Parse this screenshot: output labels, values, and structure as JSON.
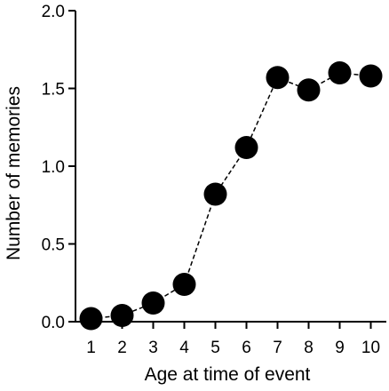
{
  "chart_data": {
    "type": "line",
    "title": "",
    "xlabel": "Age at time of event",
    "ylabel": "Number of memories",
    "x": [
      1,
      2,
      3,
      4,
      5,
      6,
      7,
      8,
      9,
      10
    ],
    "series": [
      {
        "values": [
          0.02,
          0.04,
          0.12,
          0.24,
          0.82,
          1.12,
          1.57,
          1.49,
          1.6,
          1.58
        ]
      }
    ],
    "xlim": [
      0.5,
      10.5
    ],
    "ylim": [
      0,
      2.0
    ],
    "x_ticks": [
      "1",
      "2",
      "3",
      "4",
      "5",
      "6",
      "7",
      "8",
      "9",
      "10"
    ],
    "y_ticks": [
      "0.0",
      "0.5",
      "1.0",
      "1.5",
      "2.0"
    ],
    "line_style": "dashed",
    "marker": "filled-circle",
    "colors": {
      "marker": "#000000",
      "line": "#000000",
      "axis": "#000000"
    },
    "grid": false,
    "legend": "none"
  }
}
